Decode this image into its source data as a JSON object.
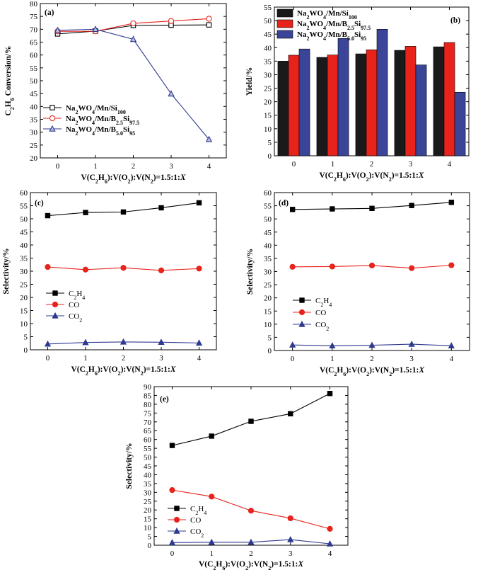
{
  "figure_title": "",
  "chart_data": [
    {
      "id": "a",
      "panel_label": "(a)",
      "type": "line",
      "x": [
        0,
        1,
        2,
        3,
        4
      ],
      "xlabel": "V(C2H6):V(O2):V(N2)=1.5:1:X",
      "xlabel_parts": {
        "pre": "V(C",
        "s1": "2",
        "mid1": "H",
        "s2": "6",
        "rest": "):V(O",
        "s3": "2",
        "mid2": "):V(N",
        "s4": "2",
        "tail": ")=1.5:1:",
        "ital": "X"
      },
      "ylabel": "C2H6 Conversion/%",
      "ylabel_parts": {
        "a": "C",
        "s1": "2",
        "b": "H",
        "s2": "6",
        "c": " Conversion/%"
      },
      "ylim": [
        20,
        80
      ],
      "yticks": [
        20,
        25,
        30,
        35,
        40,
        45,
        50,
        55,
        60,
        65,
        70,
        75,
        80
      ],
      "xticks": [
        0,
        1,
        2,
        3,
        4
      ],
      "legend_position": "center-left",
      "series": [
        {
          "name": "Na2WO4/Mn/Si100",
          "name_parts": {
            "a": "Na",
            "s1": "2",
            "b": "WO",
            "s2": "4",
            "c": "/Mn/Si",
            "s3": "100"
          },
          "values": [
            68.2,
            69.3,
            71.5,
            71.6,
            71.7
          ],
          "color": "#000000",
          "marker": "square"
        },
        {
          "name": "Na2WO4/Mn/B2.5Si97.5",
          "name_parts": {
            "a": "Na",
            "s1": "2",
            "b": "WO",
            "s2": "4",
            "c": "/Mn/B",
            "s3": "2.5",
            "d": "Si",
            "s4": "97.5"
          },
          "values": [
            69.2,
            69.2,
            72.3,
            73.2,
            74.1
          ],
          "color": "#e8231c",
          "marker": "circle"
        },
        {
          "name": "Na2WO4/Mn/B5.0Si95",
          "name_parts": {
            "a": "Na",
            "s1": "2",
            "b": "WO",
            "s2": "4",
            "c": "/Mn/B",
            "s3": "5.0",
            "d": "Si",
            "s4": "95"
          },
          "values": [
            69.6,
            70.0,
            66.1,
            44.9,
            27.2
          ],
          "color": "#2e3a8f",
          "marker": "triangle"
        }
      ]
    },
    {
      "id": "b",
      "panel_label": "(b)",
      "type": "bar",
      "categories": [
        "0",
        "1",
        "2",
        "3",
        "4"
      ],
      "xlabel": "V(C2H6):V(O2):V(N2)=1.5:1:X",
      "ylabel": "Yield/%",
      "ylim": [
        0,
        55
      ],
      "yticks": [
        0,
        5,
        10,
        15,
        20,
        25,
        30,
        35,
        40,
        45,
        50,
        55
      ],
      "legend_position": "top-left",
      "series": [
        {
          "name": "Na2WO4/Mn/Si100",
          "name_parts": {
            "a": "Na",
            "s1": "2",
            "b": "WO",
            "s2": "4",
            "c": "/Mn/Si",
            "s3": "100"
          },
          "values": [
            35.0,
            36.4,
            37.7,
            39.0,
            40.3
          ],
          "color": "#1a1a1a"
        },
        {
          "name": "Na2WO4/Mn/B2.5Si97.5",
          "name_parts": {
            "a": "Na",
            "s1": "2",
            "b": "WO",
            "s2": "4",
            "c": "/Mn/B",
            "s3": "2.5",
            "d": "Si",
            "s4": "97.5"
          },
          "values": [
            37.2,
            37.3,
            39.2,
            40.5,
            41.9
          ],
          "color": "#e8231c"
        },
        {
          "name": "Na2WO4/Mn/B5.0Si95",
          "name_parts": {
            "a": "Na",
            "s1": "2",
            "b": "WO",
            "s2": "4",
            "c": "/Mn/B",
            "s3": "5.0",
            "d": "Si",
            "s4": "95"
          },
          "values": [
            39.5,
            43.4,
            46.8,
            33.6,
            23.5
          ],
          "color": "#3a4599"
        }
      ]
    },
    {
      "id": "c",
      "panel_label": "(c)",
      "type": "line",
      "x": [
        0,
        1,
        2,
        3,
        4
      ],
      "xlabel": "V(C2H6):V(O2):V(N2)=1.5:1:X",
      "ylabel": "Selectivity/%",
      "ylim": [
        0,
        60
      ],
      "yticks": [
        0,
        5,
        10,
        15,
        20,
        25,
        30,
        35,
        40,
        45,
        50,
        55,
        60
      ],
      "xticks": [
        0,
        1,
        2,
        3,
        4
      ],
      "legend_position": "lower-left",
      "series": [
        {
          "name": "C2H4",
          "name_parts": {
            "a": "C",
            "s1": "2",
            "b": "H",
            "s2": "4"
          },
          "values": [
            51.2,
            52.4,
            52.6,
            54.2,
            56.1
          ],
          "color": "#000000",
          "marker": "square"
        },
        {
          "name": "CO",
          "name_parts": {
            "a": "CO"
          },
          "values": [
            31.6,
            30.6,
            31.3,
            30.3,
            31.0
          ],
          "color": "#e8231c",
          "marker": "circle"
        },
        {
          "name": "CO2",
          "name_parts": {
            "a": "CO",
            "s1": "2"
          },
          "values": [
            2.2,
            2.8,
            3.0,
            2.9,
            2.6
          ],
          "color": "#2e3a8f",
          "marker": "triangle"
        }
      ]
    },
    {
      "id": "d",
      "panel_label": "(d)",
      "type": "line",
      "x": [
        0,
        1,
        2,
        3,
        4
      ],
      "xlabel": "V(C2H6):V(O2):V(N2)=1.5:1:X",
      "ylabel": "Selectivity/%",
      "ylim": [
        0,
        60
      ],
      "yticks": [
        0,
        5,
        10,
        15,
        20,
        25,
        30,
        35,
        40,
        45,
        50,
        55,
        60
      ],
      "xticks": [
        0,
        1,
        2,
        3,
        4
      ],
      "legend_position": "lower-left",
      "series": [
        {
          "name": "C2H4",
          "name_parts": {
            "a": "C",
            "s1": "2",
            "b": "H",
            "s2": "4"
          },
          "values": [
            53.6,
            53.8,
            54.0,
            55.1,
            56.3
          ],
          "color": "#000000",
          "marker": "square"
        },
        {
          "name": "CO",
          "name_parts": {
            "a": "CO"
          },
          "values": [
            31.8,
            31.9,
            32.3,
            31.3,
            32.4
          ],
          "color": "#e8231c",
          "marker": "circle"
        },
        {
          "name": "CO2",
          "name_parts": {
            "a": "CO",
            "s1": "2"
          },
          "values": [
            2.1,
            1.8,
            2.0,
            2.4,
            1.8
          ],
          "color": "#2e3a8f",
          "marker": "triangle"
        }
      ]
    },
    {
      "id": "e",
      "panel_label": "(e)",
      "type": "line",
      "x": [
        0,
        1,
        2,
        3,
        4
      ],
      "xlabel": "V(C2H6):V(O2):V(N2)=1.5:1:X",
      "ylabel": "Selectivity/%",
      "ylim": [
        0,
        90
      ],
      "yticks": [
        0,
        5,
        10,
        15,
        20,
        25,
        30,
        35,
        40,
        45,
        50,
        55,
        60,
        65,
        70,
        75,
        80,
        85,
        90
      ],
      "xticks": [
        0,
        1,
        2,
        3,
        4
      ],
      "legend_position": "lower-left",
      "series": [
        {
          "name": "C2H4",
          "name_parts": {
            "a": "C",
            "s1": "2",
            "b": "H",
            "s2": "4"
          },
          "values": [
            56.6,
            61.9,
            70.3,
            74.6,
            86.1
          ],
          "color": "#000000",
          "marker": "square"
        },
        {
          "name": "CO",
          "name_parts": {
            "a": "CO"
          },
          "values": [
            31.3,
            27.6,
            19.6,
            15.3,
            9.3
          ],
          "color": "#e8231c",
          "marker": "circle"
        },
        {
          "name": "CO2",
          "name_parts": {
            "a": "CO",
            "s1": "2"
          },
          "values": [
            1.5,
            1.7,
            1.7,
            3.2,
            0.8
          ],
          "color": "#2e3a8f",
          "marker": "triangle"
        }
      ]
    }
  ]
}
